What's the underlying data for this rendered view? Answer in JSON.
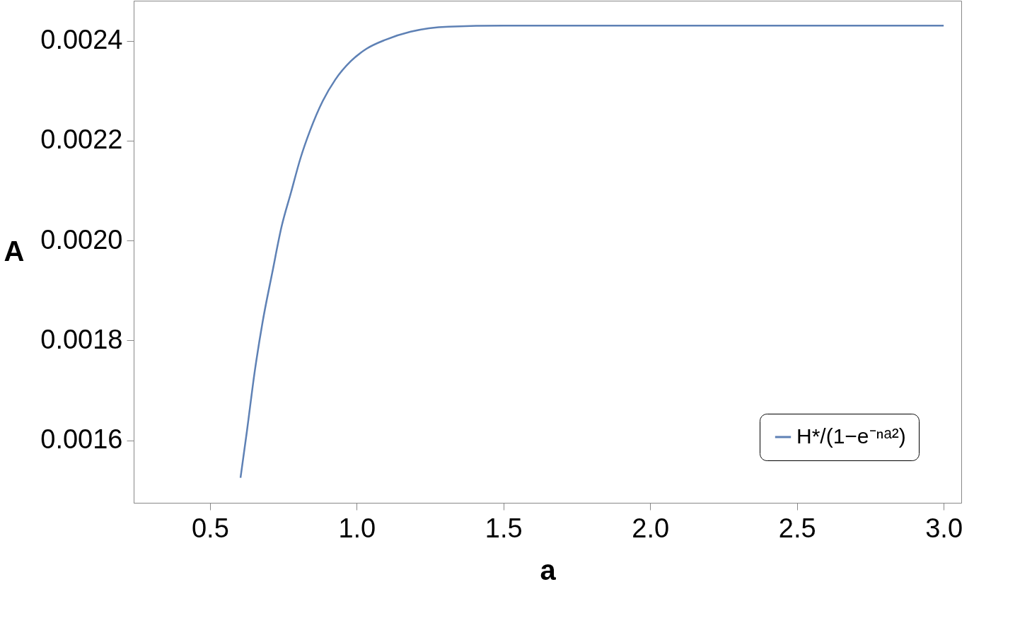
{
  "chart_data": {
    "type": "line",
    "xlabel": "a",
    "ylabel": "A",
    "xlim": [
      0.24,
      3.06
    ],
    "ylim": [
      0.001475,
      0.00248
    ],
    "xticks": [
      0.5,
      {
        "value": 1.0,
        "label": "1.0"
      },
      1.5,
      {
        "value": 2.0,
        "label": "2.0"
      },
      2.5,
      {
        "value": 3.0,
        "label": "3.0"
      }
    ],
    "yticks": [
      0.0016,
      0.0018,
      {
        "value": 0.002,
        "label": "0.0020"
      },
      0.0022,
      0.0024
    ],
    "grid": false,
    "legend": "bottom right",
    "marker": "none",
    "line_style": "solid",
    "series": [
      {
        "name": "H*/(1−e⁻ⁿᵃ²)",
        "color": "#5e81b5",
        "x": [
          0.604,
          0.626,
          0.652,
          0.679,
          0.712,
          0.744,
          0.776,
          0.808,
          0.841,
          0.884,
          0.927,
          0.98,
          1.034,
          1.099,
          1.184,
          1.313,
          1.5,
          2.0,
          2.5,
          3.0
        ],
        "values": [
          0.001525,
          0.001619,
          0.001736,
          0.001836,
          0.001935,
          0.002028,
          0.002096,
          0.002164,
          0.00222,
          0.002279,
          0.002322,
          0.002359,
          0.002384,
          0.002402,
          0.002418,
          0.002428,
          0.00243,
          0.00243,
          0.00243,
          0.00243
        ]
      }
    ]
  }
}
